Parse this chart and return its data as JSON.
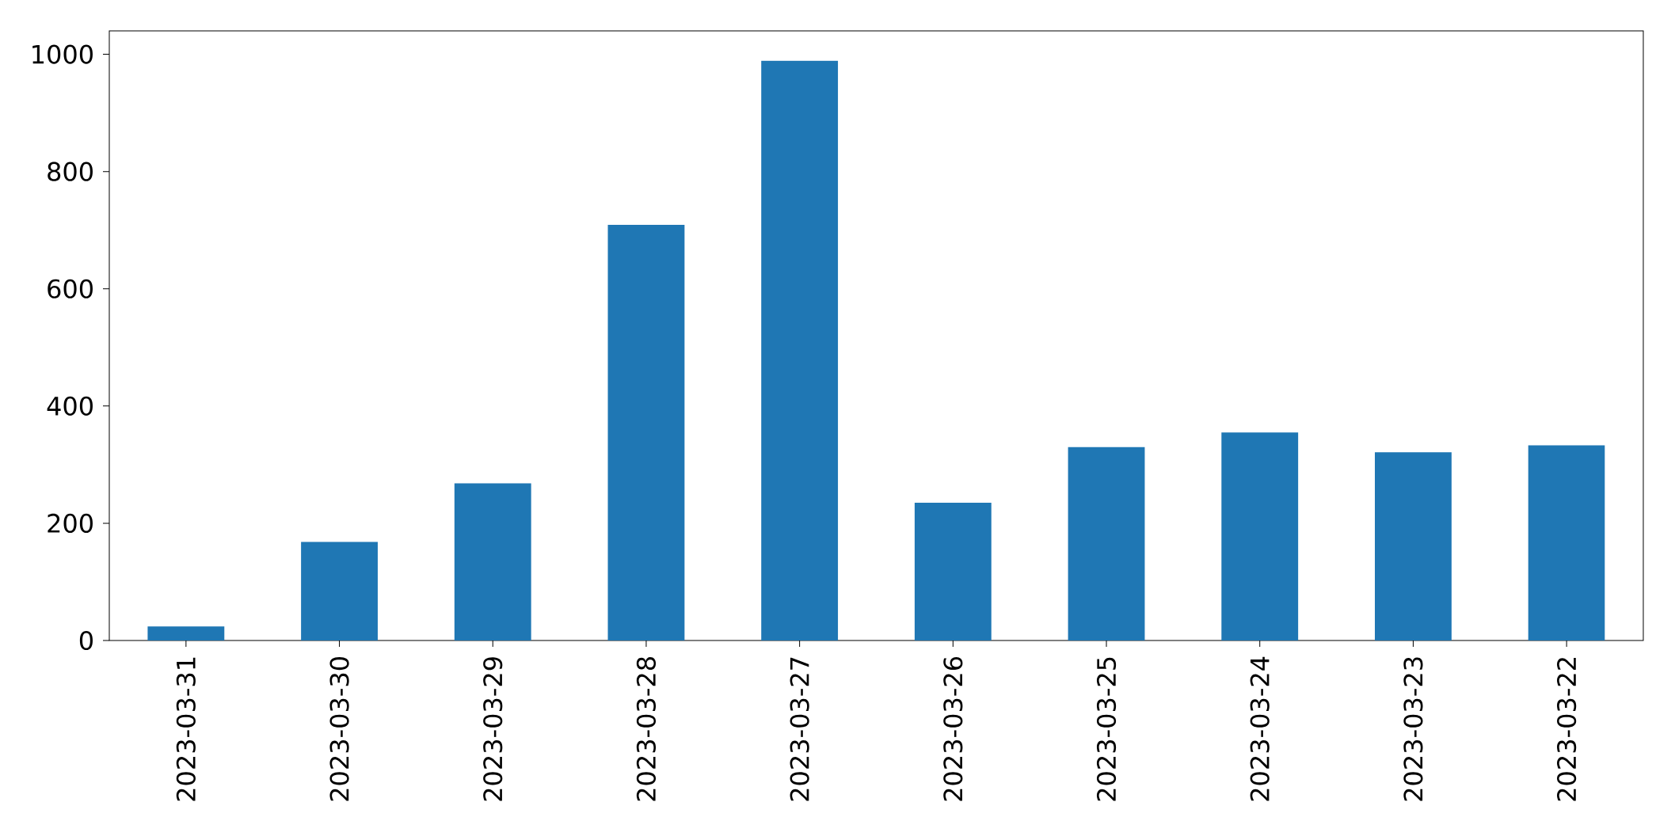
{
  "chart_data": {
    "type": "bar",
    "categories": [
      "2023-03-31",
      "2023-03-30",
      "2023-03-29",
      "2023-03-28",
      "2023-03-27",
      "2023-03-26",
      "2023-03-25",
      "2023-03-24",
      "2023-03-23",
      "2023-03-22"
    ],
    "values": [
      24,
      168,
      268,
      709,
      989,
      235,
      330,
      355,
      321,
      333
    ],
    "color": "#1f77b4",
    "ylim": [
      0,
      1040
    ],
    "yticks": [
      0,
      200,
      400,
      600,
      800,
      1000
    ]
  }
}
